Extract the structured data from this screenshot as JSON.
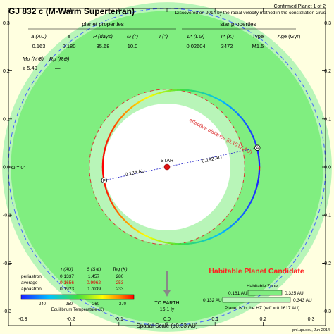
{
  "header": {
    "title": "GJ 832 c (M-Warm Superterran)",
    "confirmed": "Confirmed Planet 1 of 2",
    "discovery": "Discovered on 2014 by the radial velocity method in the constellation Grus"
  },
  "planet_properties": {
    "heading": "planet properties",
    "columns": [
      {
        "label": "a (AU)",
        "value": "0.163"
      },
      {
        "label": "e",
        "value": "0.180"
      },
      {
        "label": "P (days)",
        "value": "35.68"
      },
      {
        "label": "ω (°)",
        "value": "10.0"
      },
      {
        "label": "I (°)",
        "value": "—"
      }
    ],
    "mass_label": "Mp (M⊕)",
    "mass_value": "≥ 5.40",
    "radius_label": "Rp (R⊕)",
    "radius_value": "—"
  },
  "star_properties": {
    "heading": "star properties",
    "columns": [
      {
        "label": "L* (L⊙)",
        "value": "0.02604"
      },
      {
        "label": "T* (K)",
        "value": "3472"
      },
      {
        "label": "Type",
        "value": "M1.5"
      },
      {
        "label": "Age (Gyr)",
        "value": "—"
      }
    ]
  },
  "axes": {
    "xlabel": "Spatial Scale (±0.33 AU)",
    "ticks": [
      -0.3,
      -0.2,
      -0.1,
      0.0,
      0.1,
      0.2,
      0.3
    ],
    "tick_labels": [
      "-0.3",
      "-0.2",
      "-0.1",
      "0.0",
      "0.1",
      "0.2",
      "0.3"
    ],
    "range": [
      -0.33,
      0.33
    ],
    "omega_label": "ω = 0°"
  },
  "chart_data": {
    "type": "scatter",
    "xlim": [
      -0.33,
      0.33
    ],
    "ylim": [
      -0.33,
      0.33
    ],
    "star": {
      "label": "STAR",
      "x": 0,
      "y": 0
    },
    "orbit": {
      "a": 0.163,
      "e": 0.18
    },
    "periastron_distance_label": "0.134 AU",
    "apoastron_distance_label": "0.192 AU",
    "periastron_marker": "P",
    "apoastron_marker": "A",
    "effective_distance_label": "effective distance (0.1617 AU)",
    "effective_distance": 0.1617,
    "habitable_zone": {
      "conservative": [
        0.161,
        0.325
      ],
      "optimistic": [
        0.132,
        0.343
      ]
    }
  },
  "earth": {
    "label": "TO EARTH",
    "distance": "16.1 ly"
  },
  "stats_table": {
    "headers": [
      "r (AU)",
      "S (S⊕)",
      "Teq (K)"
    ],
    "rows": [
      {
        "name": "periastron",
        "r": "0.1337",
        "s": "1.457",
        "t": "280",
        "color": "#000000"
      },
      {
        "name": "average",
        "r": "0.1656",
        "s": "0.9962",
        "t": "253",
        "color": "#dd0000"
      },
      {
        "name": "apoastron",
        "r": "0.1923",
        "s": "0.7039",
        "t": "233",
        "color": "#000000"
      }
    ]
  },
  "colorbar": {
    "ticks": [
      "240",
      "250",
      "260",
      "270"
    ],
    "label": "Equilibrium Temperature (K)"
  },
  "candidate": {
    "text": "Habitable Planet Candidate"
  },
  "hz_legend": {
    "title": "Habitable Zone",
    "inner_left": "0.161 AU",
    "inner_right": "0.325 AU",
    "outer_left": "0.132 AU",
    "outer_right": "0.343 AU",
    "note": "Planet is in the HZ (reff = 0.1617 AU)"
  },
  "credit": "phl.upr.edu, Jun 2014",
  "colors": {
    "background": "#ffffe0",
    "hz_optimistic": "#b8f5b8",
    "hz_conservative": "#80ee80",
    "star": "#dd1111",
    "candidate_text": "#ff2020",
    "orbit_dash": "#dd3333"
  }
}
